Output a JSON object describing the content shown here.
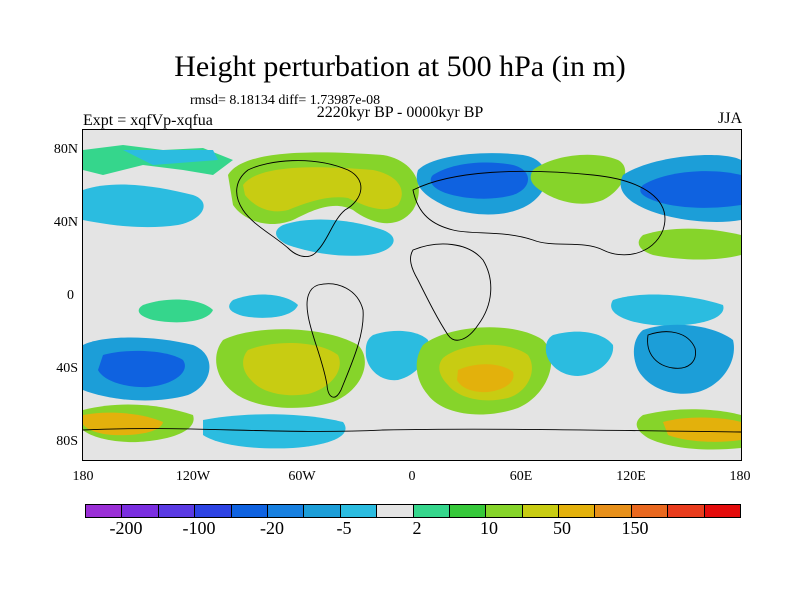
{
  "title": "Height perturbation at 500 hPa (in m)",
  "stats": "rmsd= 8.18134 diff= 1.73987e-08",
  "experiment": "Expt = xqfVp-xqfua",
  "period": "2220kyr BP - 0000kyr BP",
  "season": "JJA",
  "lat_ticks": [
    "80N",
    "40N",
    "0",
    "40S",
    "80S"
  ],
  "lon_ticks": [
    "180",
    "120W",
    "60W",
    "0",
    "60E",
    "120E",
    "180"
  ],
  "colorbar": {
    "colors": [
      "#9a2fd6",
      "#7a2ee0",
      "#5a3ae3",
      "#2d43e3",
      "#0f62e0",
      "#1780e0",
      "#1c9ed8",
      "#2bbce0",
      "#e4e4e4",
      "#35d68c",
      "#36c83a",
      "#86d42a",
      "#c8cc12",
      "#e3b10c",
      "#e7901a",
      "#e9681f",
      "#e93c1d",
      "#e40c0c"
    ],
    "labels": [
      "-200",
      "-100",
      "-20",
      "-5",
      "2",
      "10",
      "50",
      "150"
    ]
  }
}
